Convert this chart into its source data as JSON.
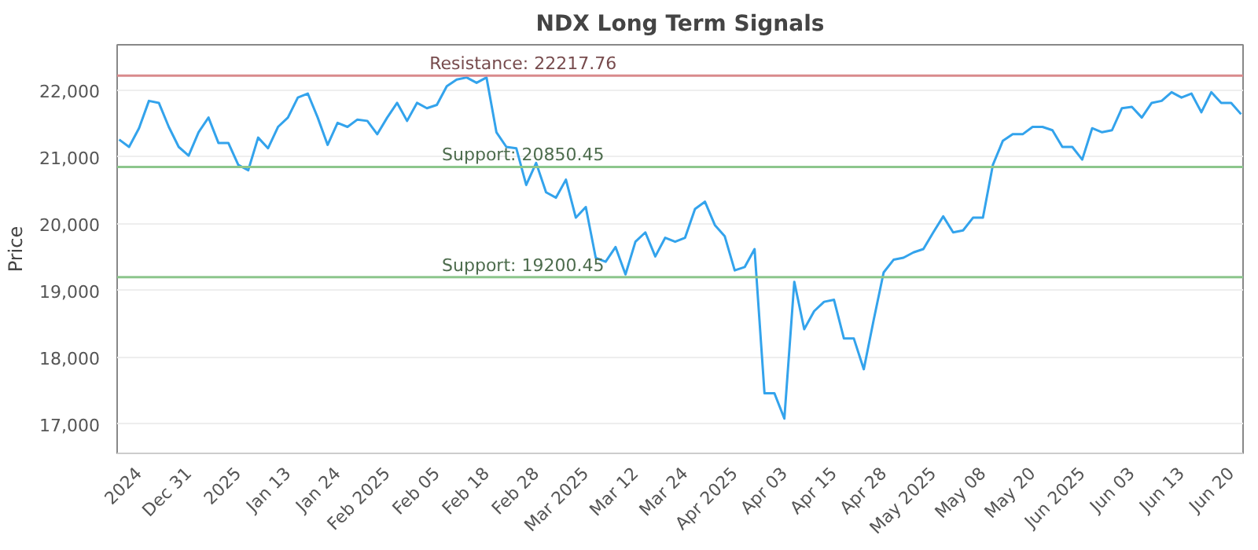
{
  "chart_data": {
    "type": "line",
    "title": "NDX Long Term Signals",
    "ylabel": "Price",
    "categories": [
      null,
      null,
      "2024",
      null,
      null,
      null,
      null,
      "Dec 31",
      null,
      null,
      null,
      null,
      "2025",
      null,
      null,
      null,
      null,
      "Jan 13",
      null,
      null,
      null,
      null,
      "Jan 24",
      null,
      null,
      null,
      null,
      "Feb 2025",
      null,
      null,
      null,
      null,
      "Feb 05",
      null,
      null,
      null,
      null,
      "Feb 18",
      null,
      null,
      null,
      null,
      "Feb 28",
      null,
      null,
      null,
      null,
      "Mar 2025",
      null,
      null,
      null,
      null,
      "Mar 12",
      null,
      null,
      null,
      null,
      "Mar 24",
      null,
      null,
      null,
      null,
      "Apr 2025",
      null,
      null,
      null,
      null,
      "Apr 03",
      null,
      null,
      null,
      null,
      "Apr 15",
      null,
      null,
      null,
      null,
      "Apr 28",
      null,
      null,
      null,
      null,
      "May 2025",
      null,
      null,
      null,
      null,
      "May 08",
      null,
      null,
      null,
      null,
      "May 20",
      null,
      null,
      null,
      null,
      "Jun 2025",
      null,
      null,
      null,
      null,
      "Jun 03",
      null,
      null,
      null,
      null,
      "Jun 13",
      null,
      null,
      null,
      null,
      "Jun 20",
      null
    ],
    "series": [
      {
        "color": "#33a3ec",
        "values": [
          21260,
          21150,
          21430,
          21840,
          21810,
          21450,
          21150,
          21020,
          21370,
          21590,
          21210,
          21210,
          20880,
          20800,
          21290,
          21130,
          21450,
          21590,
          21890,
          21950,
          21590,
          21180,
          21510,
          21450,
          21560,
          21540,
          21340,
          21590,
          21810,
          21540,
          21810,
          21730,
          21780,
          22060,
          22160,
          22190,
          22110,
          22190,
          21370,
          21150,
          21130,
          20580,
          20910,
          20470,
          20390,
          20660,
          20090,
          20250,
          19490,
          19430,
          19650,
          19240,
          19730,
          19870,
          19510,
          19790,
          19730,
          19790,
          20220,
          20330,
          19980,
          19810,
          19300,
          19350,
          19620,
          17460,
          17460,
          17080,
          19130,
          18420,
          18690,
          18830,
          18860,
          18280,
          18280,
          17820,
          18560,
          19270,
          19460,
          19490,
          19570,
          19620,
          19870,
          20110,
          19870,
          19900,
          20090,
          20090,
          20880,
          21240,
          21340,
          21340,
          21450,
          21450,
          21400,
          21150,
          21150,
          20960,
          21430,
          21370,
          21400,
          21730,
          21750,
          21590,
          21810,
          21840,
          21970,
          21890,
          21950,
          21670,
          21970,
          21810,
          21810,
          21640
        ]
      }
    ],
    "ylim": [
      16560,
      22680
    ],
    "yticks": [
      {
        "value": 17000,
        "label": "17,000"
      },
      {
        "value": 18000,
        "label": "18,000"
      },
      {
        "value": 19000,
        "label": "19,000"
      },
      {
        "value": 20000,
        "label": "20,000"
      },
      {
        "value": 21000,
        "label": "21,000"
      },
      {
        "value": 22000,
        "label": "22,000"
      }
    ],
    "ref_lines": [
      {
        "axis": "y",
        "value": 22217.76,
        "label": "Resistance: 22217.76",
        "color": "#d98a8c"
      },
      {
        "axis": "y",
        "value": 20850.45,
        "label": "Support: 20850.45",
        "color": "#8cc68c"
      },
      {
        "axis": "y",
        "value": 19200.45,
        "label": "Support: 19200.45",
        "color": "#8cc68c"
      }
    ],
    "grid": "y",
    "marker": "none",
    "line_style": "solid"
  }
}
